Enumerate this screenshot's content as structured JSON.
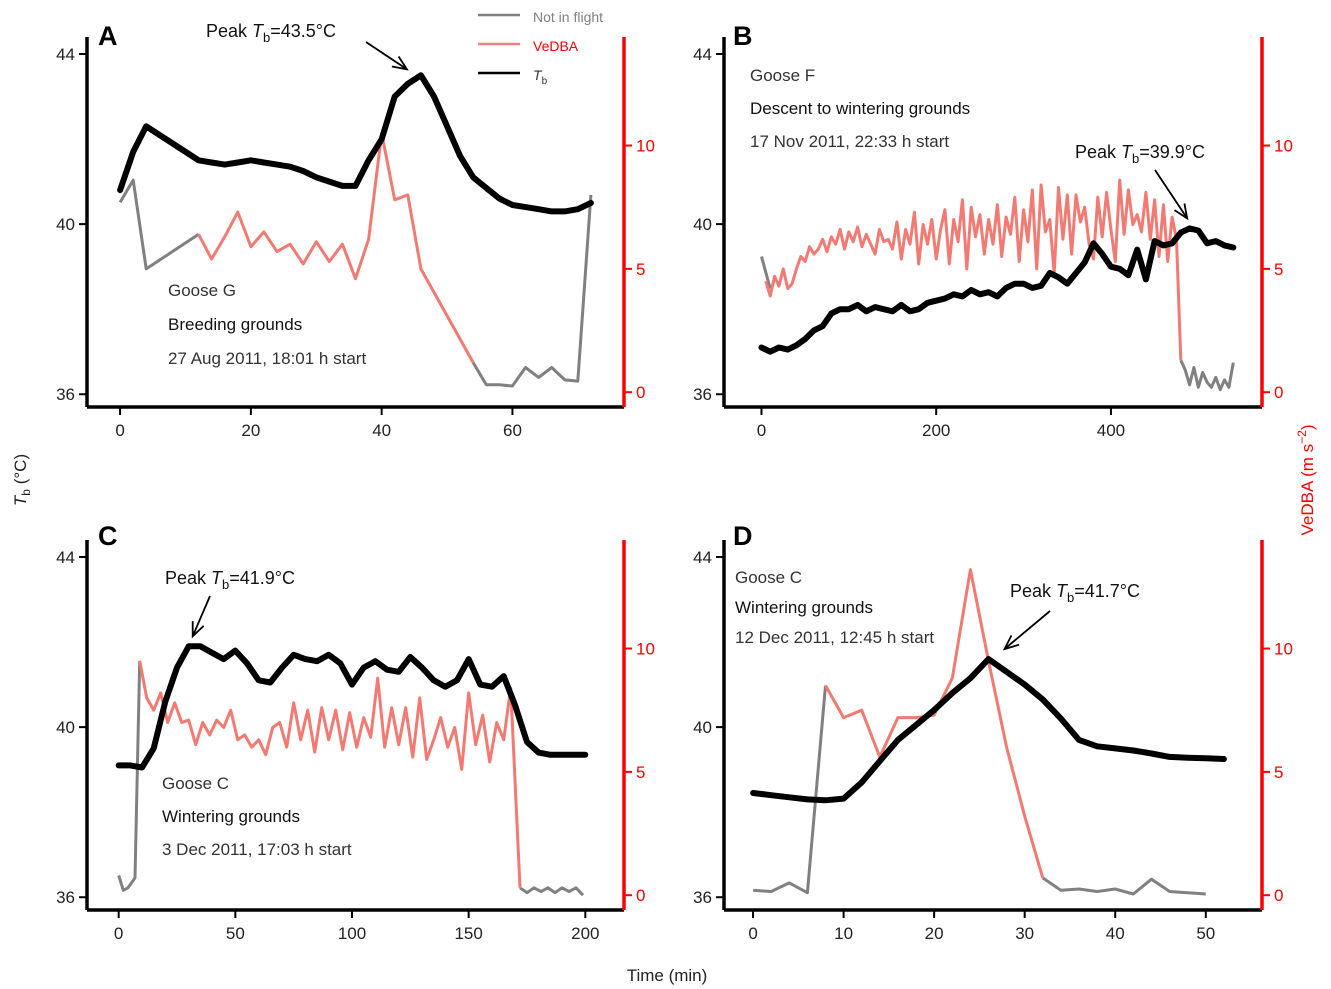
{
  "figure": {
    "y_left_label_main": "T",
    "y_left_label_sub": "b",
    "y_left_label_unit": " (°C)",
    "y_right_label_main": "VeDBA (m s",
    "y_right_label_sup": "−2",
    "y_right_label_end": ")",
    "x_label": "Time (min)",
    "legend": {
      "placement": "top-center",
      "items": [
        {
          "label": "Not in flight",
          "color": "#808080",
          "text_color": "#808080"
        },
        {
          "label": "VeDBA",
          "color": "#f08080",
          "text_color": "#ff0000"
        },
        {
          "label_main": "T",
          "label_sub": "b",
          "color": "#000000",
          "text_color": "#333333"
        }
      ]
    },
    "colors": {
      "tb": "#000000",
      "vedba": "#f27a73",
      "not_in_flight": "#808080",
      "right_axis": "#ff0000"
    }
  },
  "chart_data": [
    {
      "type": "line",
      "panel_letter": "A",
      "annotation_lines": [
        "Goose G",
        "Breeding grounds",
        "27 Aug 2011, 18:01 h start"
      ],
      "peak_label": {
        "prefix": "Peak ",
        "sub": "b",
        "value": "=43.5°C",
        "t": 46,
        "tb": 43.5
      },
      "xlim": [
        -2,
        74
      ],
      "xticks": [
        0,
        20,
        40,
        60
      ],
      "ylim_left": [
        35.7,
        44.4
      ],
      "yticks_left": [
        36,
        40,
        44
      ],
      "ylim_right": [
        -0.6,
        14.4
      ],
      "yticks_right": [
        0,
        5,
        10
      ],
      "tb": {
        "t": [
          0,
          2,
          4,
          6,
          8,
          10,
          12,
          14,
          16,
          18,
          20,
          22,
          24,
          26,
          28,
          30,
          32,
          34,
          36,
          38,
          40,
          42,
          44,
          46,
          48,
          50,
          52,
          54,
          56,
          58,
          60,
          62,
          64,
          66,
          68,
          70,
          72
        ],
        "v": [
          40.8,
          41.7,
          42.3,
          42.1,
          41.9,
          41.7,
          41.5,
          41.45,
          41.4,
          41.45,
          41.5,
          41.45,
          41.4,
          41.35,
          41.25,
          41.1,
          41.0,
          40.9,
          40.9,
          41.5,
          42.0,
          43.0,
          43.3,
          43.5,
          43.0,
          42.3,
          41.6,
          41.1,
          40.85,
          40.6,
          40.45,
          40.4,
          40.35,
          40.3,
          40.3,
          40.35,
          40.5
        ]
      },
      "vedba": {
        "t": [
          12,
          14,
          16,
          18,
          20,
          22,
          24,
          26,
          28,
          30,
          32,
          34,
          36,
          38,
          40,
          42,
          44,
          46,
          54
        ],
        "v": [
          6.4,
          5.4,
          6.3,
          7.3,
          5.9,
          6.5,
          5.7,
          6.0,
          5.2,
          6.1,
          5.3,
          6.0,
          4.6,
          6.2,
          10.5,
          7.8,
          8.0,
          5.0,
          1.2
        ]
      },
      "not_in_flight": [
        {
          "t": [
            0,
            2,
            4,
            12
          ],
          "v": [
            7.7,
            8.6,
            5.0,
            6.4
          ]
        },
        {
          "t": [
            54,
            56,
            58,
            60,
            62,
            64,
            66,
            68,
            70,
            72
          ],
          "v": [
            1.2,
            0.3,
            0.3,
            0.25,
            1.0,
            0.6,
            1.0,
            0.5,
            0.45,
            8.0
          ]
        }
      ]
    },
    {
      "type": "line",
      "panel_letter": "B",
      "annotation_lines": [
        "Goose F",
        "Descent to wintering grounds",
        "17 Nov 2011, 22:33 h start"
      ],
      "peak_label": {
        "prefix": "Peak ",
        "sub": "b",
        "value": "=39.9°C",
        "t": 485,
        "tb": 39.9
      },
      "xlim": [
        -20,
        550
      ],
      "xticks": [
        0,
        200,
        400
      ],
      "ylim_left": [
        35.7,
        44.4
      ],
      "yticks_left": [
        36,
        40,
        44
      ],
      "ylim_right": [
        -0.6,
        14.4
      ],
      "yticks_right": [
        0,
        5,
        10
      ],
      "tb": {
        "t": [
          0,
          10,
          20,
          30,
          40,
          50,
          60,
          70,
          80,
          90,
          100,
          110,
          120,
          130,
          140,
          150,
          160,
          170,
          180,
          190,
          200,
          210,
          220,
          230,
          240,
          250,
          260,
          270,
          280,
          290,
          300,
          310,
          320,
          330,
          340,
          350,
          360,
          370,
          380,
          390,
          400,
          410,
          420,
          430,
          440,
          450,
          460,
          470,
          480,
          490,
          500,
          510,
          520,
          530,
          540
        ],
        "v": [
          37.1,
          37.0,
          37.1,
          37.05,
          37.15,
          37.3,
          37.5,
          37.6,
          37.9,
          38.0,
          38.0,
          38.1,
          37.95,
          38.05,
          38.0,
          37.95,
          38.1,
          37.95,
          38.0,
          38.15,
          38.2,
          38.25,
          38.35,
          38.3,
          38.45,
          38.35,
          38.4,
          38.3,
          38.5,
          38.6,
          38.6,
          38.5,
          38.55,
          38.85,
          38.75,
          38.6,
          38.85,
          39.1,
          39.55,
          39.3,
          39.0,
          38.95,
          38.8,
          39.4,
          38.7,
          39.6,
          39.5,
          39.55,
          39.8,
          39.9,
          39.85,
          39.55,
          39.6,
          39.5,
          39.45
        ]
      },
      "vedba": {
        "t": [
          5,
          10,
          15,
          20,
          25,
          30,
          35,
          40,
          45,
          50,
          55,
          60,
          65,
          70,
          75,
          80,
          85,
          90,
          95,
          100,
          105,
          110,
          115,
          120,
          125,
          130,
          135,
          140,
          145,
          150,
          155,
          160,
          165,
          170,
          175,
          180,
          185,
          190,
          195,
          200,
          205,
          210,
          215,
          220,
          225,
          230,
          235,
          240,
          245,
          250,
          255,
          260,
          265,
          270,
          275,
          280,
          285,
          290,
          295,
          300,
          305,
          310,
          315,
          320,
          325,
          330,
          335,
          340,
          345,
          350,
          355,
          360,
          365,
          370,
          375,
          380,
          385,
          390,
          395,
          400,
          405,
          410,
          415,
          420,
          425,
          430,
          435,
          440,
          445,
          450,
          455,
          460,
          465,
          470,
          475,
          480
        ],
        "v": [
          4.5,
          3.9,
          4.7,
          4.3,
          5.0,
          4.2,
          4.4,
          5.0,
          5.5,
          5.3,
          5.9,
          5.6,
          5.8,
          6.2,
          5.7,
          6.3,
          6.0,
          6.6,
          5.8,
          6.5,
          6.1,
          6.7,
          5.9,
          6.4,
          6.0,
          5.6,
          6.6,
          6.1,
          6.2,
          5.8,
          6.9,
          5.4,
          6.6,
          6.0,
          7.3,
          5.2,
          6.8,
          6.0,
          7.0,
          5.4,
          6.6,
          7.4,
          5.2,
          7.0,
          6.1,
          7.8,
          5.0,
          7.5,
          6.3,
          7.2,
          5.6,
          7.0,
          6.0,
          7.6,
          5.5,
          7.1,
          6.4,
          7.9,
          5.3,
          7.4,
          6.1,
          8.2,
          5.0,
          8.4,
          6.5,
          7.0,
          4.8,
          8.3,
          6.2,
          8.0,
          5.6,
          8.0,
          6.9,
          7.5,
          6.0,
          5.4,
          7.9,
          6.3,
          8.1,
          6.6,
          5.3,
          8.6,
          6.4,
          8.2,
          6.8,
          7.2,
          6.5,
          8.1,
          6.2,
          7.8,
          5.5,
          7.6,
          5.3,
          7.1,
          6.2,
          1.3
        ]
      },
      "not_in_flight": [
        {
          "t": [
            0,
            10
          ],
          "v": [
            5.5,
            4.2
          ]
        },
        {
          "t": [
            480,
            485,
            490,
            495,
            500,
            505,
            510,
            515,
            520,
            525,
            530,
            535,
            540
          ],
          "v": [
            1.3,
            0.9,
            0.3,
            1.0,
            0.2,
            0.8,
            0.4,
            0.2,
            0.6,
            0.1,
            0.5,
            0.2,
            1.2
          ]
        }
      ]
    },
    {
      "type": "line",
      "panel_letter": "C",
      "annotation_lines": [
        "Goose C",
        "Wintering grounds",
        "3 Dec 2011, 17:03 h start"
      ],
      "peak_label": {
        "prefix": "Peak ",
        "sub": "b",
        "value": "=41.9°C",
        "t": 30,
        "tb": 41.9
      },
      "xlim": [
        -5,
        208
      ],
      "xticks": [
        0,
        50,
        100,
        150,
        200
      ],
      "ylim_left": [
        35.7,
        44.4
      ],
      "yticks_left": [
        36,
        40,
        44
      ],
      "ylim_right": [
        -0.6,
        14.4
      ],
      "yticks_right": [
        0,
        5,
        10
      ],
      "tb": {
        "t": [
          0,
          5,
          10,
          15,
          20,
          25,
          30,
          35,
          40,
          45,
          50,
          55,
          60,
          65,
          70,
          75,
          80,
          85,
          90,
          95,
          100,
          105,
          110,
          115,
          120,
          125,
          130,
          135,
          140,
          145,
          150,
          155,
          160,
          165,
          170,
          175,
          180,
          185,
          190,
          195,
          200
        ],
        "v": [
          39.1,
          39.1,
          39.05,
          39.5,
          40.6,
          41.4,
          41.9,
          41.9,
          41.75,
          41.6,
          41.8,
          41.5,
          41.1,
          41.05,
          41.4,
          41.7,
          41.6,
          41.55,
          41.7,
          41.5,
          41.0,
          41.4,
          41.55,
          41.35,
          41.3,
          41.65,
          41.4,
          41.1,
          40.95,
          41.1,
          41.6,
          41.0,
          40.95,
          41.2,
          40.5,
          39.65,
          39.4,
          39.35,
          39.35,
          39.35,
          39.35
        ]
      },
      "vedba": {
        "t": [
          9,
          12,
          15,
          18,
          21,
          24,
          27,
          30,
          33,
          36,
          39,
          42,
          45,
          48,
          51,
          54,
          57,
          60,
          63,
          66,
          69,
          72,
          75,
          78,
          81,
          84,
          87,
          90,
          93,
          96,
          99,
          102,
          105,
          108,
          111,
          114,
          117,
          120,
          123,
          126,
          129,
          132,
          135,
          138,
          141,
          144,
          147,
          150,
          153,
          156,
          159,
          162,
          165,
          168,
          172
        ],
        "v": [
          9.5,
          8.0,
          7.5,
          8.2,
          7.0,
          7.8,
          7.0,
          7.1,
          6.1,
          7.0,
          6.5,
          7.1,
          6.8,
          7.5,
          6.3,
          6.5,
          6.0,
          6.3,
          5.7,
          6.8,
          7.0,
          6.0,
          7.8,
          6.3,
          7.5,
          5.8,
          7.6,
          6.3,
          7.5,
          5.9,
          7.4,
          6.0,
          7.2,
          6.4,
          8.8,
          6.0,
          7.6,
          6.1,
          7.6,
          5.6,
          8.0,
          5.5,
          6.3,
          7.2,
          6.0,
          6.8,
          5.1,
          8.2,
          6.1,
          7.3,
          5.4,
          7.0,
          6.3,
          8.4,
          0.3
        ]
      },
      "not_in_flight": [
        {
          "t": [
            0,
            2,
            4,
            7,
            9
          ],
          "v": [
            0.8,
            0.2,
            0.3,
            0.7,
            9.5
          ]
        },
        {
          "t": [
            172,
            175,
            178,
            181,
            184,
            187,
            190,
            193,
            196,
            199
          ],
          "v": [
            0.3,
            0.1,
            0.3,
            0.15,
            0.3,
            0.1,
            0.3,
            0.15,
            0.3,
            0.0
          ]
        }
      ]
    },
    {
      "type": "line",
      "panel_letter": "D",
      "annotation_lines": [
        "Goose C",
        "Wintering grounds",
        "12 Dec 2011, 12:45 h start"
      ],
      "peak_label": {
        "prefix": "Peak ",
        "sub": "b",
        "value": "=41.7°C",
        "t": 26,
        "tb": 41.6
      },
      "xlim": [
        -1,
        54
      ],
      "xticks": [
        0,
        10,
        20,
        30,
        40,
        50
      ],
      "ylim_left": [
        35.7,
        44.4
      ],
      "yticks_left": [
        36,
        40,
        44
      ],
      "ylim_right": [
        -0.6,
        14.4
      ],
      "yticks_right": [
        0,
        5,
        10
      ],
      "tb": {
        "t": [
          0,
          2,
          4,
          6,
          8,
          10,
          12,
          14,
          16,
          18,
          20,
          22,
          24,
          26,
          28,
          30,
          32,
          34,
          36,
          38,
          40,
          42,
          44,
          46,
          48,
          50,
          52
        ],
        "v": [
          38.45,
          38.4,
          38.35,
          38.3,
          38.28,
          38.32,
          38.7,
          39.2,
          39.7,
          40.05,
          40.4,
          40.8,
          41.15,
          41.6,
          41.3,
          41.0,
          40.65,
          40.2,
          39.7,
          39.55,
          39.5,
          39.45,
          39.38,
          39.3,
          39.28,
          39.27,
          39.25
        ]
      },
      "vedba": {
        "t": [
          8,
          10,
          12,
          14,
          16,
          18,
          20,
          22,
          24,
          26,
          28,
          30,
          32
        ],
        "v": [
          8.5,
          7.2,
          7.5,
          5.6,
          7.2,
          7.2,
          7.3,
          8.8,
          13.2,
          9.5,
          6.0,
          3.2,
          0.7
        ]
      },
      "not_in_flight": [
        {
          "t": [
            0,
            2,
            4,
            6,
            8
          ],
          "v": [
            0.2,
            0.15,
            0.5,
            0.1,
            8.5
          ]
        },
        {
          "t": [
            32,
            34,
            36,
            38,
            40,
            42,
            44,
            46,
            48,
            50
          ],
          "v": [
            0.7,
            0.2,
            0.25,
            0.15,
            0.25,
            0.05,
            0.65,
            0.15,
            0.1,
            0.05
          ]
        }
      ]
    }
  ]
}
